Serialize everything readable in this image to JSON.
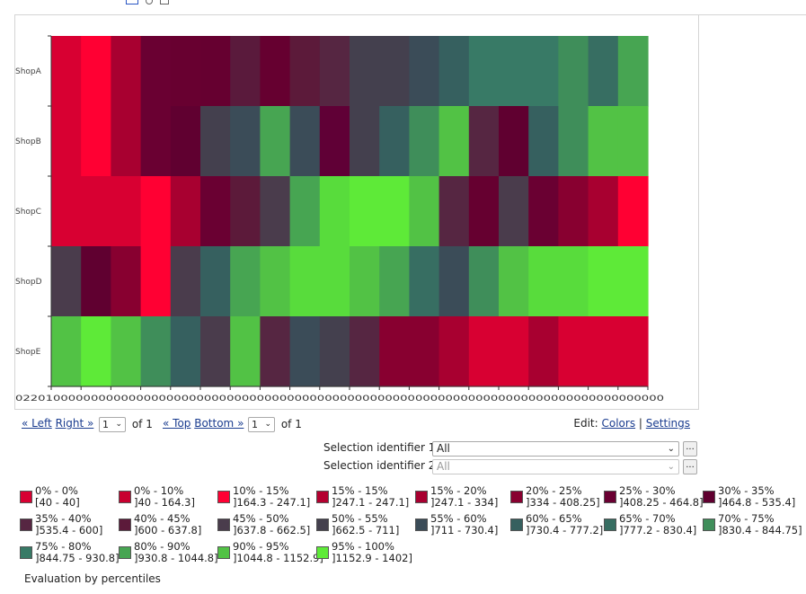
{
  "chart_data": {
    "type": "heatmap",
    "rows": [
      "ShopA",
      "ShopB",
      "ShopC",
      "ShopD",
      "ShopE"
    ],
    "x_tick_text": "02201000000000000000000000000000000000000000000000000000000000000000000000000000000000",
    "columns": 20,
    "cells": [
      [
        "#d80032",
        "#ff0033",
        "#a80030",
        "#6a0032",
        "#680030",
        "#660030",
        "#5a1a3c",
        "#660030",
        "#5c1a3a",
        "#562642",
        "#44404e",
        "#44404e",
        "#3b4c58",
        "#36605f",
        "#387a66",
        "#387a66",
        "#387a66",
        "#3f8e5a",
        "#376e62",
        "#47a552"
      ],
      [
        "#d80032",
        "#ff0033",
        "#a80030",
        "#6a0032",
        "#600030",
        "#44404e",
        "#3b4c58",
        "#47a552",
        "#3b4c58",
        "#600036",
        "#44404e",
        "#36605f",
        "#3f8e5a",
        "#52c245",
        "#562642",
        "#600030",
        "#36605f",
        "#3f8e5a",
        "#52c245",
        "#52c245"
      ],
      [
        "#d80032",
        "#d80032",
        "#d80032",
        "#ff0033",
        "#a80030",
        "#6a0032",
        "#5c1a3a",
        "#4a3c4c",
        "#47a552",
        "#58dc3c",
        "#5eea38",
        "#5eea38",
        "#52c245",
        "#562642",
        "#660030",
        "#4a3c4c",
        "#6a0032",
        "#880030",
        "#a80030",
        "#ff0033"
      ],
      [
        "#4a3c4c",
        "#600030",
        "#880030",
        "#ff0033",
        "#4a3c4c",
        "#36605f",
        "#47a552",
        "#52c245",
        "#58dc3c",
        "#58dc3c",
        "#52c245",
        "#47a552",
        "#376e62",
        "#3b4c58",
        "#3f8e5a",
        "#52c245",
        "#58dc3c",
        "#58dc3c",
        "#5eea38",
        "#5eea38"
      ],
      [
        "#52c245",
        "#5eea38",
        "#52c245",
        "#3f8e5a",
        "#36605f",
        "#4a3c4c",
        "#52c245",
        "#562642",
        "#3b4c58",
        "#44404e",
        "#562642",
        "#880030",
        "#880030",
        "#a80030",
        "#d80032",
        "#d80032",
        "#a80030",
        "#d80032",
        "#d80032",
        "#d80032"
      ]
    ]
  },
  "toolbar": {
    "icon_names": [
      "chart-type-icon",
      "search-icon",
      "export-icon"
    ]
  },
  "pager": {
    "left": "« Left",
    "right": "Right »",
    "col_page": "1",
    "col_of": "of 1",
    "top": "« Top",
    "bottom": "Bottom »",
    "row_page": "1",
    "row_of": "of 1",
    "edit_label": "Edit:",
    "colors": "Colors",
    "separator": "|",
    "settings": "Settings"
  },
  "identifiers": [
    {
      "label": "Selection identifier 1:",
      "value": "All",
      "more": "...",
      "disabled": false
    },
    {
      "label": "Selection identifier 2:",
      "value": "All",
      "more": "...",
      "disabled": true
    }
  ],
  "legend": [
    {
      "pct": "0% - 0%",
      "range": "[40 - 40]",
      "color": "#d80032"
    },
    {
      "pct": "0% - 10%",
      "range": "]40 - 164.3]",
      "color": "#c8002f"
    },
    {
      "pct": "10% - 15%",
      "range": "]164.3 - 247.1]",
      "color": "#ff0033"
    },
    {
      "pct": "15% - 15%",
      "range": "]247.1 - 247.1]",
      "color": "#b40030"
    },
    {
      "pct": "15% - 20%",
      "range": "]247.1 - 334]",
      "color": "#a80030"
    },
    {
      "pct": "20% - 25%",
      "range": "]334 - 408.25]",
      "color": "#880030"
    },
    {
      "pct": "25% - 30%",
      "range": "]408.25 - 464.8]",
      "color": "#6a0032"
    },
    {
      "pct": "30% - 35%",
      "range": "]464.8 - 535.4]",
      "color": "#600030"
    },
    {
      "pct": "35% - 40%",
      "range": "]535.4 - 600]",
      "color": "#562642"
    },
    {
      "pct": "40% - 45%",
      "range": "]600 - 637.8]",
      "color": "#5c1a3a"
    },
    {
      "pct": "45% - 50%",
      "range": "]637.8 - 662.5]",
      "color": "#4a3c4c"
    },
    {
      "pct": "50% - 55%",
      "range": "]662.5 - 711]",
      "color": "#44404e"
    },
    {
      "pct": "55% - 60%",
      "range": "]711 - 730.4]",
      "color": "#3b4c58"
    },
    {
      "pct": "60% - 65%",
      "range": "]730.4 - 777.2]",
      "color": "#36605f"
    },
    {
      "pct": "65% - 70%",
      "range": "]777.2 - 830.4]",
      "color": "#376e62"
    },
    {
      "pct": "70% - 75%",
      "range": "]830.4 - 844.75]",
      "color": "#3f8e5a"
    },
    {
      "pct": "75% - 80%",
      "range": "]844.75 - 930.8]",
      "color": "#387a66"
    },
    {
      "pct": "80% - 90%",
      "range": "]930.8 - 1044.8]",
      "color": "#47a552"
    },
    {
      "pct": "90% - 95%",
      "range": "]1044.8 - 1152.9]",
      "color": "#52c245"
    },
    {
      "pct": "95% - 100%",
      "range": "]1152.9 - 1402]",
      "color": "#5eea38"
    }
  ],
  "evaluation_note": "Evaluation by percentiles"
}
